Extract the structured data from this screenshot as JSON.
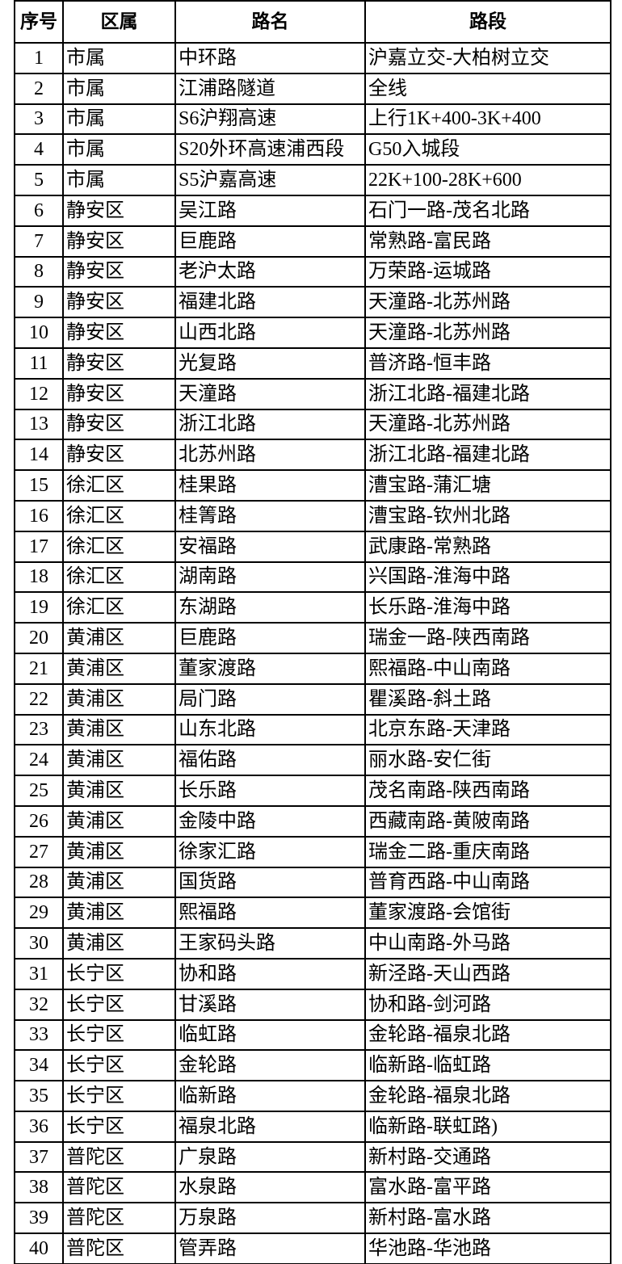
{
  "table": {
    "header": [
      "序号",
      "区属",
      "路名",
      "路段"
    ],
    "rows": [
      [
        1,
        "市属",
        "中环路",
        "沪嘉立交-大柏树立交"
      ],
      [
        2,
        "市属",
        "江浦路隧道",
        "全线"
      ],
      [
        3,
        "市属",
        "S6沪翔高速",
        "上行1K+400-3K+400"
      ],
      [
        4,
        "市属",
        "S20外环高速浦西段",
        "G50入城段"
      ],
      [
        5,
        "市属",
        "S5沪嘉高速",
        "22K+100-28K+600"
      ],
      [
        6,
        "静安区",
        "吴江路",
        "石门一路-茂名北路"
      ],
      [
        7,
        "静安区",
        "巨鹿路",
        "常熟路-富民路"
      ],
      [
        8,
        "静安区",
        "老沪太路",
        "万荣路-运城路"
      ],
      [
        9,
        "静安区",
        "福建北路",
        "天潼路-北苏州路"
      ],
      [
        10,
        "静安区",
        "山西北路",
        "天潼路-北苏州路"
      ],
      [
        11,
        "静安区",
        "光复路",
        "普济路-恒丰路"
      ],
      [
        12,
        "静安区",
        "天潼路",
        "浙江北路-福建北路"
      ],
      [
        13,
        "静安区",
        "浙江北路",
        "天潼路-北苏州路"
      ],
      [
        14,
        "静安区",
        "北苏州路",
        "浙江北路-福建北路"
      ],
      [
        15,
        "徐汇区",
        "桂果路",
        "漕宝路-蒲汇塘"
      ],
      [
        16,
        "徐汇区",
        "桂箐路",
        "漕宝路-钦州北路"
      ],
      [
        17,
        "徐汇区",
        "安福路",
        "武康路-常熟路"
      ],
      [
        18,
        "徐汇区",
        "湖南路",
        "兴国路-淮海中路"
      ],
      [
        19,
        "徐汇区",
        "东湖路",
        "长乐路-淮海中路"
      ],
      [
        20,
        "黄浦区",
        "巨鹿路",
        "瑞金一路-陕西南路"
      ],
      [
        21,
        "黄浦区",
        "董家渡路",
        "熙福路-中山南路"
      ],
      [
        22,
        "黄浦区",
        "局门路",
        "瞿溪路-斜土路"
      ],
      [
        23,
        "黄浦区",
        "山东北路",
        "北京东路-天津路"
      ],
      [
        24,
        "黄浦区",
        "福佑路",
        "丽水路-安仁街"
      ],
      [
        25,
        "黄浦区",
        "长乐路",
        "茂名南路-陕西南路"
      ],
      [
        26,
        "黄浦区",
        "金陵中路",
        "西藏南路-黄陂南路"
      ],
      [
        27,
        "黄浦区",
        "徐家汇路",
        "瑞金二路-重庆南路"
      ],
      [
        28,
        "黄浦区",
        "国货路",
        "普育西路-中山南路"
      ],
      [
        29,
        "黄浦区",
        "熙福路",
        "董家渡路-会馆街"
      ],
      [
        30,
        "黄浦区",
        "王家码头路",
        "中山南路-外马路"
      ],
      [
        31,
        "长宁区",
        "协和路",
        "新泾路-天山西路"
      ],
      [
        32,
        "长宁区",
        "甘溪路",
        "协和路-剑河路"
      ],
      [
        33,
        "长宁区",
        "临虹路",
        "金轮路-福泉北路"
      ],
      [
        34,
        "长宁区",
        "金轮路",
        "临新路-临虹路"
      ],
      [
        35,
        "长宁区",
        "临新路",
        "金轮路-福泉北路"
      ],
      [
        36,
        "长宁区",
        "福泉北路",
        "临新路-联虹路)"
      ],
      [
        37,
        "普陀区",
        "广泉路",
        "新村路-交通路"
      ],
      [
        38,
        "普陀区",
        "水泉路",
        "富水路-富平路"
      ],
      [
        39,
        "普陀区",
        "万泉路",
        "新村路-富水路"
      ],
      [
        40,
        "普陀区",
        "管弄路",
        "华池路-华池路"
      ]
    ]
  }
}
